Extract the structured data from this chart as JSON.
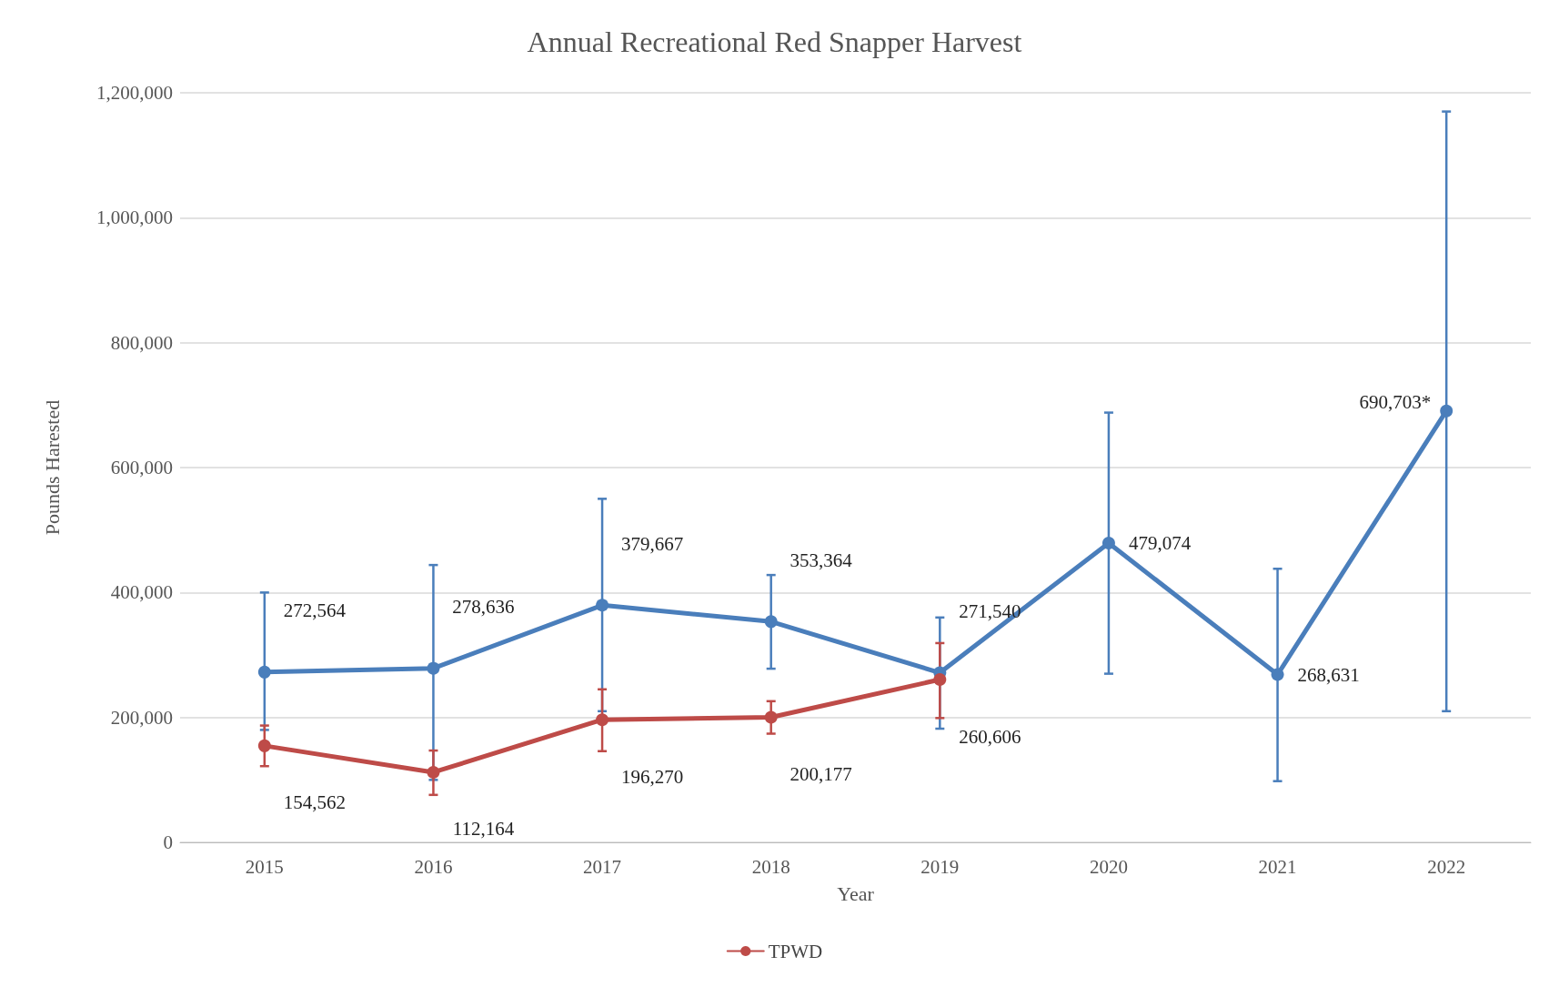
{
  "chart_data": {
    "type": "line",
    "title": "Annual Recreational Red Snapper Harvest",
    "xlabel": "Year",
    "ylabel": "Pounds Harested",
    "categories": [
      "2015",
      "2016",
      "2017",
      "2018",
      "2019",
      "2020",
      "2021",
      "2022"
    ],
    "series": [
      {
        "color": "#4a7ebb",
        "values": [
          272564,
          278636,
          379667,
          353364,
          271540,
          479074,
          268631,
          690703
        ],
        "value_labels": [
          "272,564",
          "278,636",
          "379,667",
          "353,364",
          "271,540",
          "479,074",
          "268,631",
          "690,703*"
        ],
        "errors": [
          [
            180000,
            400000
          ],
          [
            100000,
            444000
          ],
          [
            210000,
            550000
          ],
          [
            278000,
            428000
          ],
          [
            182000,
            360000
          ],
          [
            270000,
            688000
          ],
          [
            98000,
            438000
          ],
          [
            210000,
            1170000
          ]
        ]
      },
      {
        "name": "TPWD",
        "color": "#be4b48",
        "values": [
          154562,
          112164,
          196270,
          200177,
          260606,
          null,
          null,
          null
        ],
        "value_labels": [
          "154,562",
          "112,164",
          "196,270",
          "200,177",
          "260,606",
          null,
          null,
          null
        ],
        "errors": [
          [
            122000,
            187000
          ],
          [
            76000,
            147000
          ],
          [
            146000,
            245000
          ],
          [
            174000,
            226000
          ],
          [
            199000,
            319000
          ],
          null,
          null,
          null
        ]
      }
    ],
    "ylim": [
      0,
      1200000
    ],
    "yticks": [
      0,
      {
        "value": 200000,
        "label": "200,000"
      },
      {
        "value": 400000,
        "label": "400,000"
      },
      {
        "value": 600000,
        "label": "600,000"
      },
      {
        "value": 800000,
        "label": "800,000"
      },
      {
        "value": 1000000,
        "label": "1,000,000"
      },
      {
        "value": 1200000,
        "label": "1,200,000"
      }
    ],
    "grid": "y",
    "legend": "bottom",
    "marker": "circle",
    "line_style": "solid"
  }
}
